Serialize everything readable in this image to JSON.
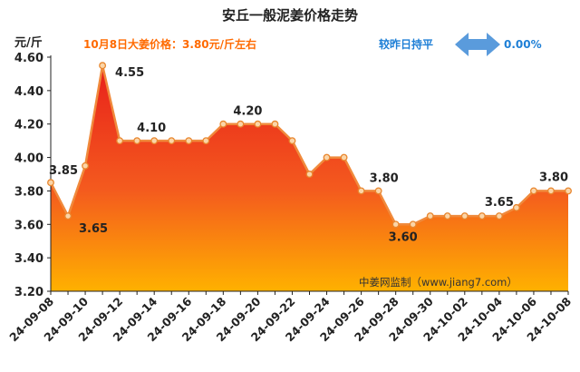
{
  "chart_data": {
    "type": "area",
    "title": "安丘一般泥姜价格走势",
    "ylabel": "元/斤",
    "xlabel": "",
    "ylim": [
      3.2,
      4.6
    ],
    "yticks": [
      "3.20",
      "3.40",
      "3.60",
      "3.80",
      "4.00",
      "4.20",
      "4.40",
      "4.60"
    ],
    "xtick_labels": [
      "24-09-08",
      "24-09-10",
      "24-09-12",
      "24-09-14",
      "24-09-16",
      "24-09-18",
      "24-09-20",
      "24-09-22",
      "24-09-24",
      "24-09-26",
      "24-09-28",
      "24-09-30",
      "24-10-02",
      "24-10-04",
      "24-10-06",
      "24-10-08"
    ],
    "x": [
      "24-09-08",
      "24-09-09",
      "24-09-10",
      "24-09-11",
      "24-09-12",
      "24-09-13",
      "24-09-14",
      "24-09-15",
      "24-09-16",
      "24-09-17",
      "24-09-18",
      "24-09-19",
      "24-09-20",
      "24-09-21",
      "24-09-22",
      "24-09-23",
      "24-09-24",
      "24-09-25",
      "24-09-26",
      "24-09-27",
      "24-09-28",
      "24-09-29",
      "24-09-30",
      "24-10-01",
      "24-10-02",
      "24-10-03",
      "24-10-04",
      "24-10-05",
      "24-10-06",
      "24-10-07",
      "24-10-08"
    ],
    "series": [
      {
        "values": [
          3.85,
          3.65,
          3.95,
          4.55,
          4.1,
          4.1,
          4.1,
          4.1,
          4.1,
          4.1,
          4.2,
          4.2,
          4.2,
          4.2,
          4.1,
          3.9,
          4.0,
          4.0,
          3.8,
          3.8,
          3.6,
          3.6,
          3.65,
          3.65,
          3.65,
          3.65,
          3.65,
          3.7,
          3.8,
          3.8,
          3.8
        ]
      }
    ],
    "data_labels": [
      {
        "index": 0,
        "text": "3.85"
      },
      {
        "index": 1,
        "text": "3.65"
      },
      {
        "index": 3,
        "text": "4.55"
      },
      {
        "index": 6,
        "text": "4.10"
      },
      {
        "index": 12,
        "text": "4.20"
      },
      {
        "index": 19,
        "text": "3.80"
      },
      {
        "index": 21,
        "text": "3.60"
      },
      {
        "index": 26,
        "text": "3.65"
      },
      {
        "index": 30,
        "text": "3.80"
      }
    ],
    "grid": false,
    "colors": {
      "fill_top": "#e8211b",
      "fill_bottom": "#ffb100",
      "line": "#f08a3c",
      "marker_fill": "#fbd5a8",
      "arrow": "#5a9bdc"
    }
  },
  "info": {
    "price_note": "10月8日大姜价格：3.80元/斤左右",
    "change_label": "较昨日持平",
    "change_value": "0.00%"
  },
  "source": "中姜网监制（www.jiang7.com）"
}
